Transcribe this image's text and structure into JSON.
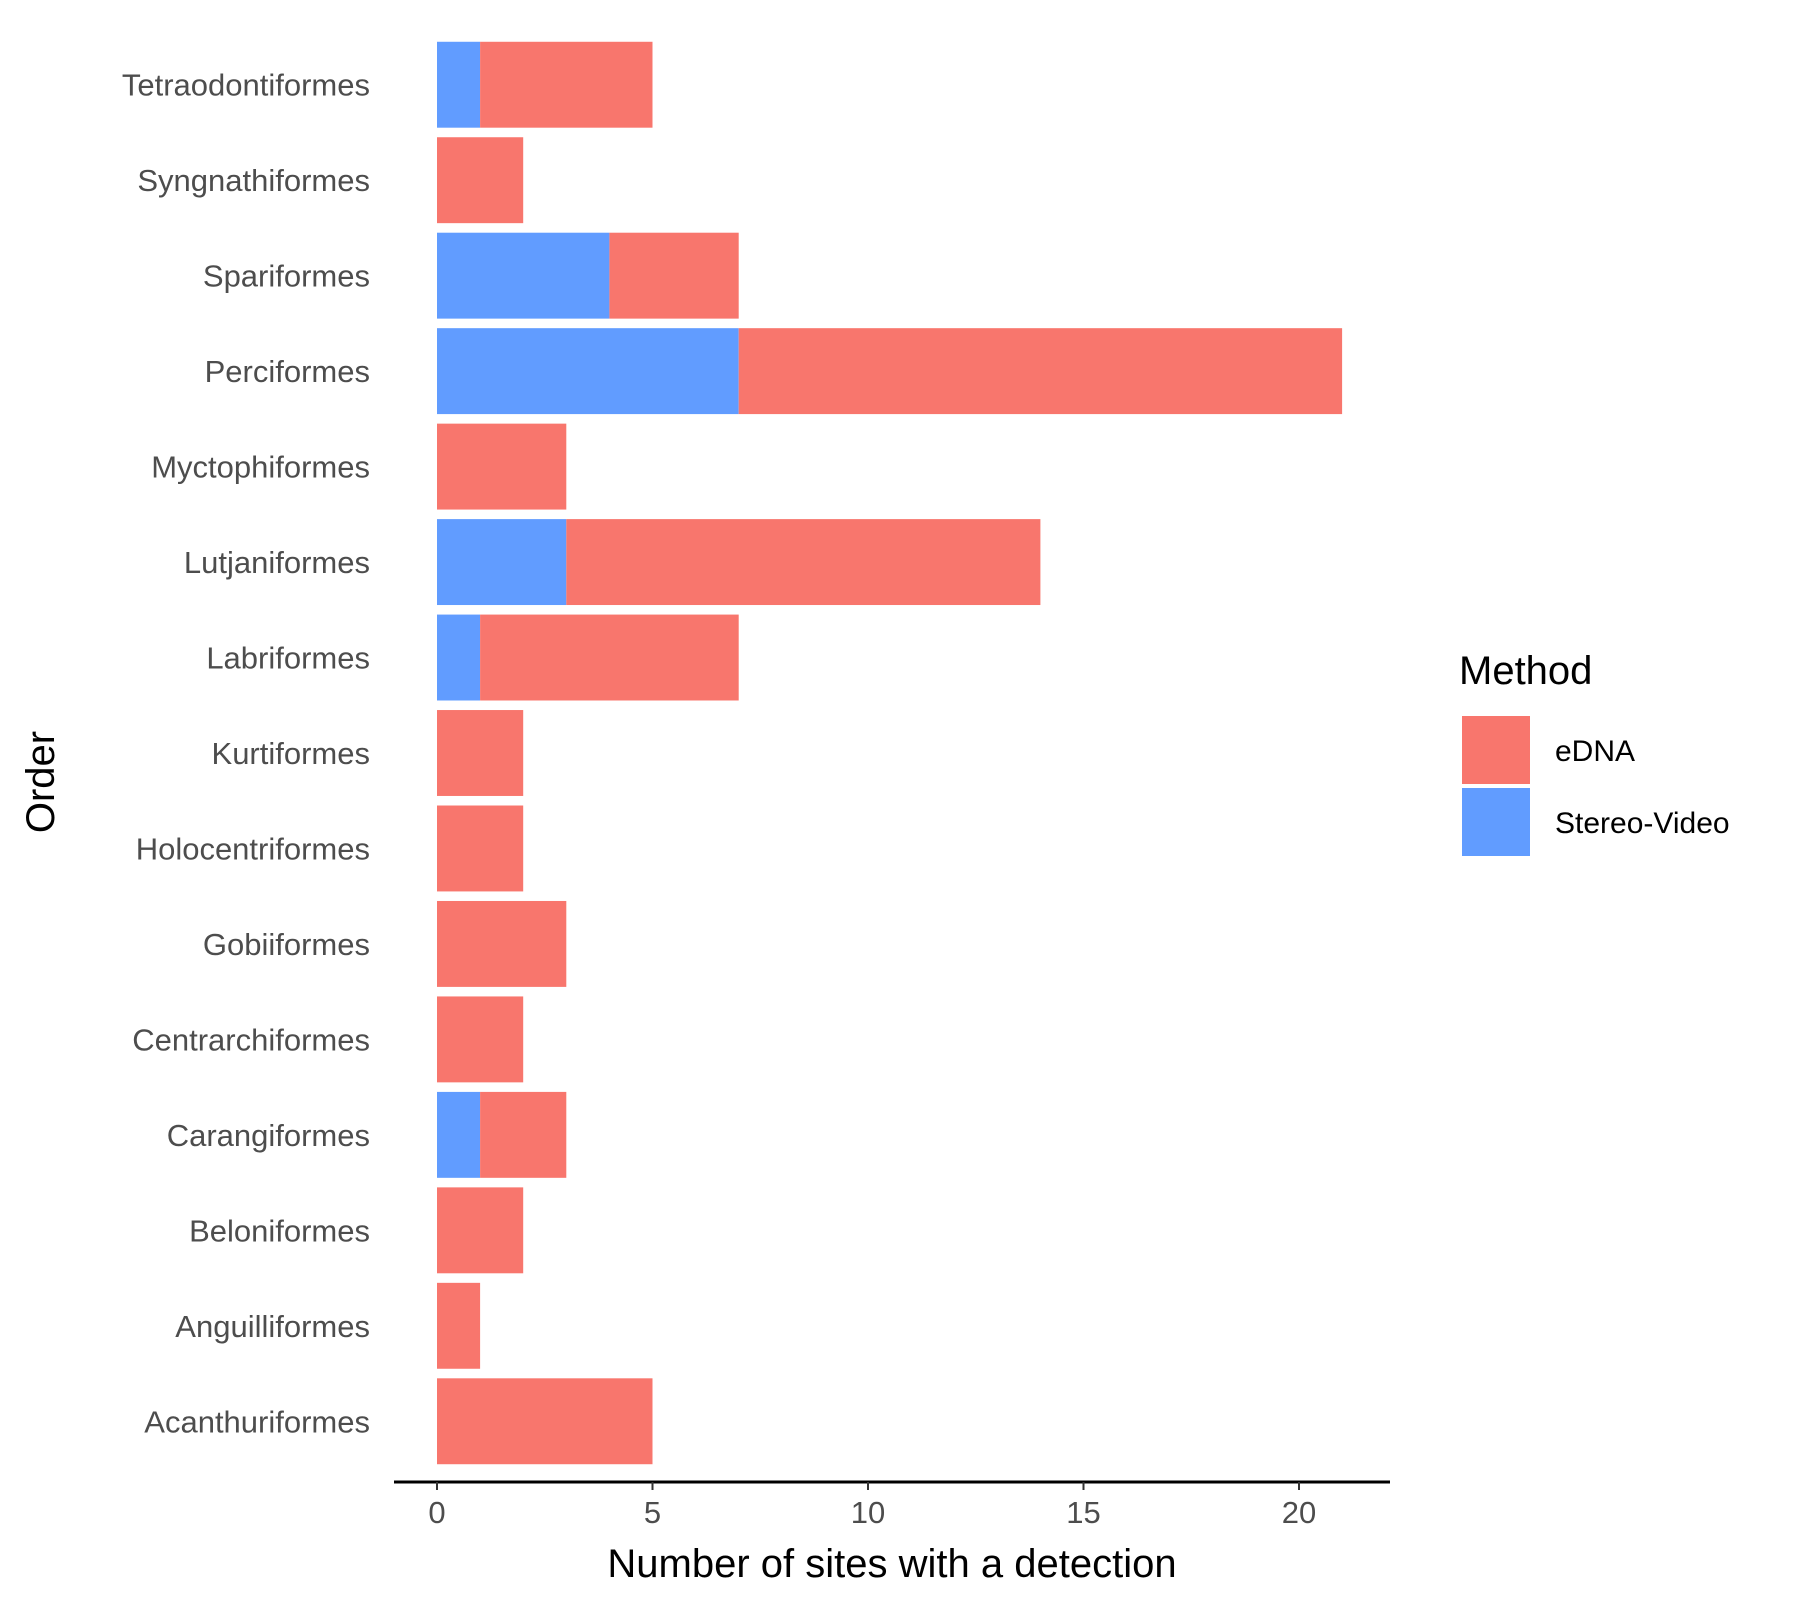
{
  "chart_data": {
    "type": "bar",
    "orientation": "horizontal",
    "stacked": true,
    "categories": [
      "Acanthuriformes",
      "Anguilliformes",
      "Beloniformes",
      "Carangiformes",
      "Centrarchiformes",
      "Gobiiformes",
      "Holocentriformes",
      "Kurtiformes",
      "Labriformes",
      "Lutjaniformes",
      "Myctophiformes",
      "Perciformes",
      "Spariformes",
      "Syngnathiformes",
      "Tetraodontiformes"
    ],
    "series": [
      {
        "name": "Stereo-Video",
        "color": "#619CFF",
        "values": [
          0,
          0,
          0,
          1,
          0,
          0,
          0,
          0,
          1,
          3,
          0,
          7,
          4,
          0,
          1
        ]
      },
      {
        "name": "eDNA",
        "color": "#F8766D",
        "values": [
          5,
          1,
          2,
          2,
          2,
          3,
          2,
          2,
          6,
          11,
          3,
          14,
          3,
          2,
          4
        ]
      }
    ],
    "xlabel": "Number of sites with a detection",
    "ylabel": "Order",
    "xlim": [
      -1,
      22
    ],
    "xticks": [
      0,
      5,
      10,
      15,
      20
    ],
    "grid": false,
    "legend": {
      "title": "Method",
      "placement": "right",
      "entries": [
        {
          "label": "eDNA",
          "color": "#F8766D"
        },
        {
          "label": "Stereo-Video",
          "color": "#619CFF"
        }
      ]
    }
  }
}
